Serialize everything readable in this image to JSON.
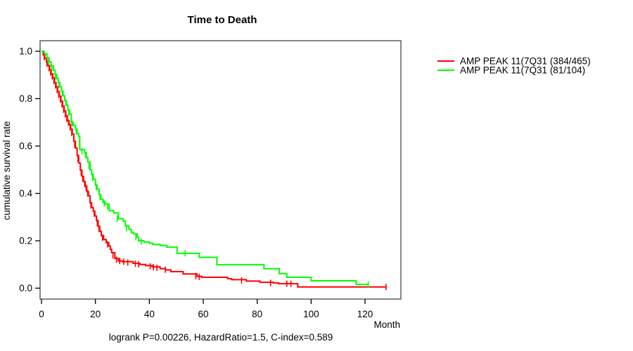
{
  "page": {
    "background": "#ffffff"
  },
  "chart_data": {
    "type": "line",
    "subtype": "kaplan-meier-step",
    "title": "Time to Death",
    "xlabel": "Month",
    "ylabel": "cumulative survival rate",
    "annotation": "logrank P=0.00226, HazardRatio=1.5, C-index=0.589",
    "xlim": [
      0,
      133
    ],
    "ylim": [
      0.0,
      1.0
    ],
    "xtick_values": [
      0,
      20,
      40,
      60,
      80,
      100,
      120
    ],
    "xtick_labels": [
      "0",
      "20",
      "40",
      "60",
      "80",
      "100",
      "120"
    ],
    "ytick_values": [
      0.0,
      0.2,
      0.4,
      0.6,
      0.8,
      1.0
    ],
    "ytick_labels": [
      "0.0",
      "0.2",
      "0.4",
      "0.6",
      "0.8",
      "1.0"
    ],
    "grid": false,
    "legend_position": "right-outside",
    "series": [
      {
        "name": "AMP PEAK 11(7Q31 (384/465)",
        "color": "#ff0000",
        "steps": [
          [
            0,
            1.0
          ],
          [
            0.6,
            0.985
          ],
          [
            1.2,
            0.97
          ],
          [
            1.8,
            0.955
          ],
          [
            2.4,
            0.94
          ],
          [
            3.0,
            0.922
          ],
          [
            3.6,
            0.905
          ],
          [
            4.2,
            0.888
          ],
          [
            4.8,
            0.868
          ],
          [
            5.4,
            0.85
          ],
          [
            6.0,
            0.83
          ],
          [
            6.6,
            0.81
          ],
          [
            7.2,
            0.79
          ],
          [
            7.8,
            0.768
          ],
          [
            8.4,
            0.748
          ],
          [
            9.0,
            0.728
          ],
          [
            9.6,
            0.708
          ],
          [
            10.2,
            0.692
          ],
          [
            10.8,
            0.672
          ],
          [
            11.4,
            0.65
          ],
          [
            12.0,
            0.62
          ],
          [
            12.6,
            0.592
          ],
          [
            13.2,
            0.56
          ],
          [
            13.8,
            0.528
          ],
          [
            14.4,
            0.498
          ],
          [
            15.0,
            0.472
          ],
          [
            15.6,
            0.45
          ],
          [
            16.2,
            0.43
          ],
          [
            16.8,
            0.408
          ],
          [
            17.4,
            0.39
          ],
          [
            18.0,
            0.36
          ],
          [
            18.6,
            0.34
          ],
          [
            19.2,
            0.325
          ],
          [
            19.8,
            0.305
          ],
          [
            20.4,
            0.285
          ],
          [
            21.0,
            0.262
          ],
          [
            21.6,
            0.24
          ],
          [
            22.2,
            0.222
          ],
          [
            23.0,
            0.205
          ],
          [
            24.0,
            0.192
          ],
          [
            25.0,
            0.178
          ],
          [
            25.5,
            0.164
          ],
          [
            26.0,
            0.15
          ],
          [
            27.2,
            0.125
          ],
          [
            28.5,
            0.115
          ],
          [
            30.0,
            0.112
          ],
          [
            34.0,
            0.105
          ],
          [
            36.5,
            0.1
          ],
          [
            38.6,
            0.095
          ],
          [
            41.0,
            0.09
          ],
          [
            44.0,
            0.082
          ],
          [
            46.0,
            0.077
          ],
          [
            48.0,
            0.07
          ],
          [
            52.5,
            0.06
          ],
          [
            57.7,
            0.05
          ],
          [
            59.4,
            0.046
          ],
          [
            69.0,
            0.04
          ],
          [
            70.5,
            0.036
          ],
          [
            76.0,
            0.03
          ],
          [
            81.0,
            0.025
          ],
          [
            86.0,
            0.022
          ],
          [
            88.0,
            0.019
          ],
          [
            95.0,
            0.005
          ],
          [
            128.0,
            0.005
          ]
        ],
        "censors": [
          [
            1.0,
            0.975
          ],
          [
            2.0,
            0.948
          ],
          [
            2.8,
            0.928
          ],
          [
            3.4,
            0.91
          ],
          [
            4.0,
            0.893
          ],
          [
            4.6,
            0.875
          ],
          [
            5.2,
            0.856
          ],
          [
            5.8,
            0.836
          ],
          [
            6.4,
            0.816
          ],
          [
            7.0,
            0.796
          ],
          [
            7.6,
            0.775
          ],
          [
            8.2,
            0.753
          ],
          [
            8.8,
            0.733
          ],
          [
            9.4,
            0.714
          ],
          [
            10.0,
            0.698
          ],
          [
            10.6,
            0.678
          ],
          [
            11.2,
            0.655
          ],
          [
            12.3,
            0.605
          ],
          [
            13.5,
            0.545
          ],
          [
            14.7,
            0.488
          ],
          [
            15.3,
            0.462
          ],
          [
            16.0,
            0.44
          ],
          [
            16.5,
            0.425
          ],
          [
            17.1,
            0.4
          ],
          [
            18.3,
            0.35
          ],
          [
            19.5,
            0.315
          ],
          [
            20.7,
            0.275
          ],
          [
            21.3,
            0.25
          ],
          [
            22.6,
            0.213
          ],
          [
            24.5,
            0.185
          ],
          [
            26.5,
            0.138
          ],
          [
            27.8,
            0.12
          ],
          [
            29.0,
            0.115
          ],
          [
            30.5,
            0.112
          ],
          [
            32.0,
            0.108
          ],
          [
            34.8,
            0.103
          ],
          [
            36.0,
            0.101
          ],
          [
            40.3,
            0.092
          ],
          [
            41.5,
            0.089
          ],
          [
            42.8,
            0.086
          ],
          [
            45.9,
            0.078
          ],
          [
            57.2,
            0.051
          ],
          [
            58.5,
            0.048
          ],
          [
            74.2,
            0.033
          ],
          [
            85.0,
            0.022
          ],
          [
            91.0,
            0.019
          ],
          [
            92.5,
            0.019
          ],
          [
            127.8,
            0.005
          ]
        ]
      },
      {
        "name": "AMP PEAK 11(7Q31 (81/104)",
        "color": "#00ff00",
        "steps": [
          [
            0,
            1.0
          ],
          [
            1.0,
            0.99
          ],
          [
            2.0,
            0.972
          ],
          [
            2.8,
            0.955
          ],
          [
            3.6,
            0.938
          ],
          [
            4.4,
            0.92
          ],
          [
            5.0,
            0.902
          ],
          [
            5.6,
            0.885
          ],
          [
            6.2,
            0.868
          ],
          [
            6.8,
            0.85
          ],
          [
            7.4,
            0.832
          ],
          [
            8.0,
            0.812
          ],
          [
            8.6,
            0.792
          ],
          [
            9.2,
            0.772
          ],
          [
            9.8,
            0.752
          ],
          [
            10.4,
            0.735
          ],
          [
            11.0,
            0.7
          ],
          [
            11.8,
            0.688
          ],
          [
            12.6,
            0.67
          ],
          [
            13.2,
            0.652
          ],
          [
            13.8,
            0.64
          ],
          [
            14.2,
            0.585
          ],
          [
            16.0,
            0.572
          ],
          [
            16.6,
            0.552
          ],
          [
            17.2,
            0.532
          ],
          [
            18.0,
            0.5
          ],
          [
            18.6,
            0.48
          ],
          [
            19.2,
            0.46
          ],
          [
            20.0,
            0.435
          ],
          [
            20.6,
            0.418
          ],
          [
            21.4,
            0.395
          ],
          [
            22.0,
            0.375
          ],
          [
            22.8,
            0.362
          ],
          [
            23.8,
            0.355
          ],
          [
            25.1,
            0.327
          ],
          [
            26.8,
            0.318
          ],
          [
            28.5,
            0.293
          ],
          [
            30.3,
            0.283
          ],
          [
            31.1,
            0.263
          ],
          [
            32.4,
            0.248
          ],
          [
            33.3,
            0.234
          ],
          [
            34.2,
            0.229
          ],
          [
            35.5,
            0.215
          ],
          [
            36.0,
            0.2
          ],
          [
            38.0,
            0.195
          ],
          [
            40.0,
            0.19
          ],
          [
            41.2,
            0.185
          ],
          [
            44.0,
            0.18
          ],
          [
            46.5,
            0.173
          ],
          [
            50.3,
            0.147
          ],
          [
            58.5,
            0.13
          ],
          [
            65.1,
            0.099
          ],
          [
            82.5,
            0.082
          ],
          [
            88.2,
            0.061
          ],
          [
            91.0,
            0.046
          ],
          [
            100.0,
            0.031
          ],
          [
            116.7,
            0.016
          ],
          [
            121.2,
            0.016
          ]
        ],
        "censors": [
          [
            2.4,
            0.963
          ],
          [
            3.8,
            0.93
          ],
          [
            5.2,
            0.893
          ],
          [
            6.5,
            0.859
          ],
          [
            7.7,
            0.822
          ],
          [
            9.0,
            0.782
          ],
          [
            10.1,
            0.742
          ],
          [
            11.4,
            0.695
          ],
          [
            12.9,
            0.661
          ],
          [
            14.0,
            0.61
          ],
          [
            15.0,
            0.578
          ],
          [
            16.3,
            0.562
          ],
          [
            17.6,
            0.516
          ],
          [
            19.0,
            0.465
          ],
          [
            20.3,
            0.426
          ],
          [
            21.7,
            0.385
          ],
          [
            23.3,
            0.357
          ],
          [
            24.5,
            0.345
          ],
          [
            28.1,
            0.293
          ],
          [
            31.6,
            0.253
          ],
          [
            35.0,
            0.215
          ],
          [
            37.0,
            0.197
          ],
          [
            53.3,
            0.147
          ],
          [
            121.2,
            0.016
          ]
        ]
      }
    ]
  }
}
